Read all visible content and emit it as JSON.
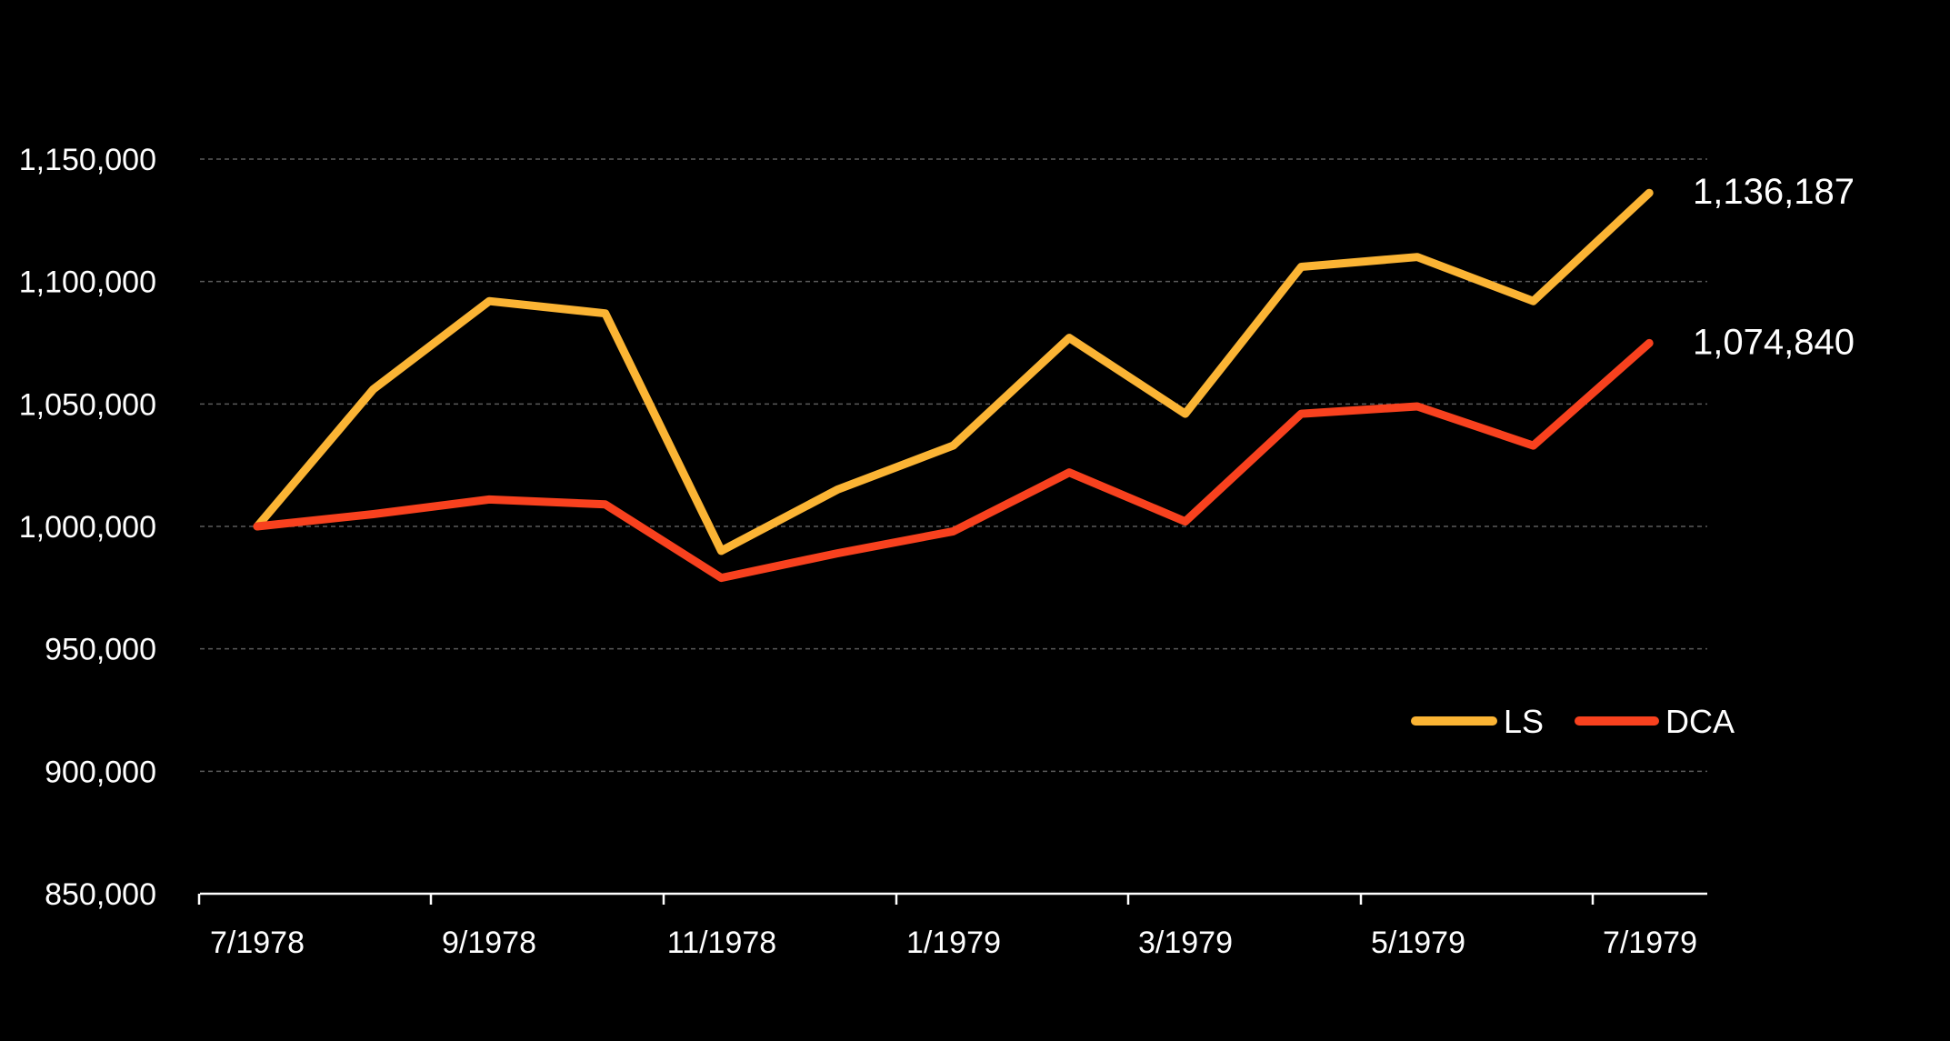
{
  "chart_data": {
    "type": "line",
    "title": "",
    "xlabel": "",
    "ylabel": "",
    "x": [
      "7/1978",
      "8/1978",
      "9/1978",
      "10/1978",
      "11/1978",
      "12/1978",
      "1/1979",
      "2/1979",
      "3/1979",
      "4/1979",
      "5/1979",
      "6/1979",
      "7/1979"
    ],
    "x_tick_labels": [
      "7/1978",
      "9/1978",
      "11/1978",
      "1/1979",
      "3/1979",
      "5/1979",
      "7/1979"
    ],
    "ylim": [
      850000,
      1150000
    ],
    "y_ticks": [
      850000,
      900000,
      950000,
      1000000,
      1050000,
      1100000,
      1150000
    ],
    "y_tick_labels": [
      "850,000",
      "900,000",
      "950,000",
      "1,000,000",
      "1,050,000",
      "1,100,000",
      "1,150,000"
    ],
    "grid": true,
    "legend_position": "bottom-right",
    "series": [
      {
        "name": "LS",
        "color": "#FBB434",
        "values": [
          1000000,
          1056000,
          1092000,
          1087000,
          990000,
          1015000,
          1033000,
          1077000,
          1046000,
          1106000,
          1110000,
          1092000,
          1136187
        ],
        "end_label": "1,136,187"
      },
      {
        "name": "DCA",
        "color": "#F8411E",
        "values": [
          1000000,
          1005000,
          1011000,
          1009000,
          979000,
          989000,
          998000,
          1022000,
          1002000,
          1046000,
          1049000,
          1033000,
          1074840
        ],
        "end_label": "1,074,840"
      }
    ],
    "grid_color": "#5a5a5a",
    "axis_color": "#ffffff"
  }
}
